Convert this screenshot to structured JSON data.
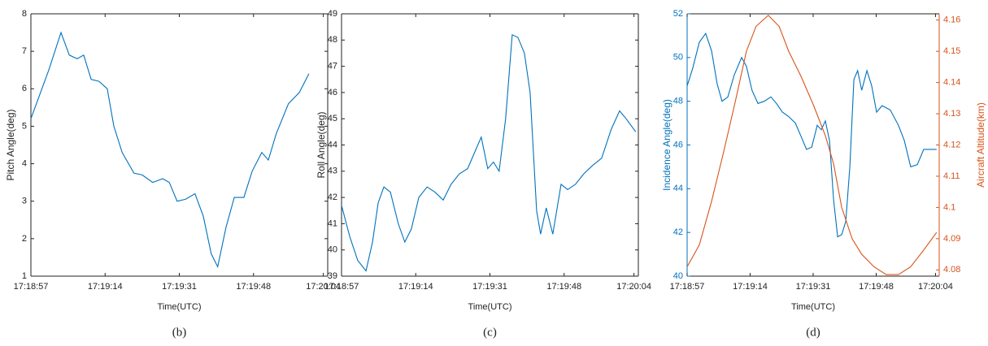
{
  "chart_data": [
    {
      "type": "line",
      "caption": "(b)",
      "x_label": "Time(UTC)",
      "y_label": "Pitch Angle(deg)",
      "xlim": [
        0,
        68
      ],
      "xticks": [
        {
          "value": 0,
          "label": "17:18:57"
        },
        {
          "value": 17,
          "label": "17:19:14"
        },
        {
          "value": 34,
          "label": "17:19:31"
        },
        {
          "value": 51,
          "label": "17:19:48"
        },
        {
          "value": 67,
          "label": "17:20:04"
        }
      ],
      "ylim": [
        1,
        8
      ],
      "yticks": [
        1,
        2,
        3,
        4,
        5,
        6,
        7,
        8
      ],
      "series": [
        {
          "color": "#0072bd",
          "x": [
            0,
            4.1,
            6.9,
            8.8,
            10.6,
            12.1,
            13.8,
            15.6,
            17.5,
            19,
            20.9,
            23.6,
            25.5,
            27.9,
            30.2,
            31.7,
            33.5,
            35.4,
            37.6,
            39.5,
            41.3,
            42.8,
            44.7,
            46.6,
            48.8,
            50.7,
            52.9,
            54.4,
            56.2,
            59,
            61.5,
            63.7
          ],
          "values": [
            5.2,
            6.5,
            7.5,
            6.9,
            6.8,
            6.9,
            6.25,
            6.2,
            6.0,
            5.0,
            4.3,
            3.75,
            3.7,
            3.5,
            3.6,
            3.5,
            3.0,
            3.05,
            3.2,
            2.6,
            1.6,
            1.25,
            2.3,
            3.1,
            3.1,
            3.8,
            4.3,
            4.1,
            4.8,
            5.6,
            5.9,
            6.4
          ]
        }
      ]
    },
    {
      "type": "line",
      "caption": "(c)",
      "x_label": "Time(UTC)",
      "y_label": "Roll Angle(deg)",
      "xlim": [
        0,
        68
      ],
      "xticks": [
        {
          "value": 0,
          "label": "17:18:57"
        },
        {
          "value": 17,
          "label": "17:19:14"
        },
        {
          "value": 34,
          "label": "17:19:31"
        },
        {
          "value": 51,
          "label": "17:19:48"
        },
        {
          "value": 67,
          "label": "17:20:04"
        }
      ],
      "ylim": [
        39,
        49
      ],
      "yticks": [
        39,
        40,
        41,
        42,
        43,
        44,
        45,
        46,
        47,
        48,
        49
      ],
      "series": [
        {
          "color": "#0072bd",
          "x": [
            0,
            1.9,
            3.7,
            5.6,
            7.1,
            8.4,
            9.7,
            11.2,
            13,
            14.5,
            16,
            17.7,
            19.6,
            21.4,
            23.3,
            25.1,
            27,
            28.9,
            30.7,
            32,
            33.5,
            34.8,
            36.1,
            37.6,
            39.1,
            40.4,
            41.9,
            43.2,
            44.7,
            45.6,
            46.9,
            48.4,
            50.3,
            51.8,
            53.6,
            55.5,
            57.4,
            59.6,
            61.8,
            63.7,
            65.2,
            67.4
          ],
          "values": [
            41.7,
            40.5,
            39.6,
            39.2,
            40.3,
            41.8,
            42.4,
            42.2,
            41.0,
            40.3,
            40.8,
            42.0,
            42.4,
            42.2,
            41.9,
            42.5,
            42.9,
            43.1,
            43.8,
            44.3,
            43.1,
            43.35,
            43.0,
            45.0,
            48.2,
            48.1,
            47.5,
            46.0,
            41.5,
            40.6,
            41.6,
            40.6,
            42.5,
            42.3,
            42.5,
            42.9,
            43.2,
            43.5,
            44.6,
            45.3,
            45.0,
            44.5
          ]
        }
      ]
    },
    {
      "type": "line",
      "caption": "(d)",
      "x_label": "Time(UTC)",
      "y_label": "Incidence Angle(deg)",
      "y2_label": "Aircraft Altitude(km)",
      "xlim": [
        0,
        68
      ],
      "xticks": [
        {
          "value": 0,
          "label": "17:18:57"
        },
        {
          "value": 17,
          "label": "17:19:14"
        },
        {
          "value": 34,
          "label": "17:19:31"
        },
        {
          "value": 51,
          "label": "17:19:48"
        },
        {
          "value": 67,
          "label": "17:20:04"
        }
      ],
      "ylim": [
        40,
        52
      ],
      "yticks": [
        40,
        42,
        44,
        46,
        48,
        50,
        52
      ],
      "y2lim": [
        4.078,
        4.162
      ],
      "y2ticks": [
        4.08,
        4.09,
        4.1,
        4.11,
        4.12,
        4.13,
        4.14,
        4.15,
        4.16
      ],
      "series": [
        {
          "color": "#0072bd",
          "x": [
            0,
            1.5,
            3.3,
            5,
            6.6,
            8.1,
            9.4,
            11,
            12.7,
            14.7,
            16,
            17.5,
            19.1,
            20.8,
            22.6,
            24.1,
            25.7,
            27.4,
            29.2,
            30.7,
            32.2,
            33.6,
            35.1,
            36.2,
            37.3,
            38.4,
            39.5,
            40.6,
            41.7,
            42.8,
            43.9,
            45,
            46,
            47.1,
            48.5,
            49.8,
            51.1,
            52.6,
            54.8,
            57,
            58.6,
            60.3,
            62.1,
            63.8,
            67.3
          ],
          "values": [
            48.7,
            49.5,
            50.7,
            51.1,
            50.3,
            48.8,
            48.0,
            48.2,
            49.2,
            50.0,
            49.6,
            48.5,
            47.9,
            48.0,
            48.2,
            47.9,
            47.5,
            47.3,
            47.0,
            46.4,
            45.8,
            45.9,
            46.9,
            46.7,
            47.1,
            46.2,
            43.5,
            41.8,
            41.9,
            42.5,
            45.0,
            49.0,
            49.4,
            48.5,
            49.4,
            48.7,
            47.5,
            47.8,
            47.6,
            46.9,
            46.2,
            45.0,
            45.1,
            45.8,
            45.8
          ]
        },
        {
          "color": "#d95319",
          "axis": "y2",
          "x": [
            0,
            3.3,
            6.6,
            9.9,
            13.2,
            16,
            18.6,
            21.9,
            24.8,
            27.4,
            30.7,
            34,
            37.3,
            39.5,
            41.7,
            44.5,
            47.1,
            50.4,
            53.7,
            57,
            60.3,
            63.6,
            67.3
          ],
          "values": [
            4.081,
            4.088,
            4.102,
            4.118,
            4.135,
            4.15,
            4.158,
            4.1615,
            4.158,
            4.15,
            4.142,
            4.133,
            4.123,
            4.114,
            4.1,
            4.09,
            4.085,
            4.081,
            4.0785,
            4.0785,
            4.081,
            4.086,
            4.092
          ]
        }
      ]
    }
  ]
}
